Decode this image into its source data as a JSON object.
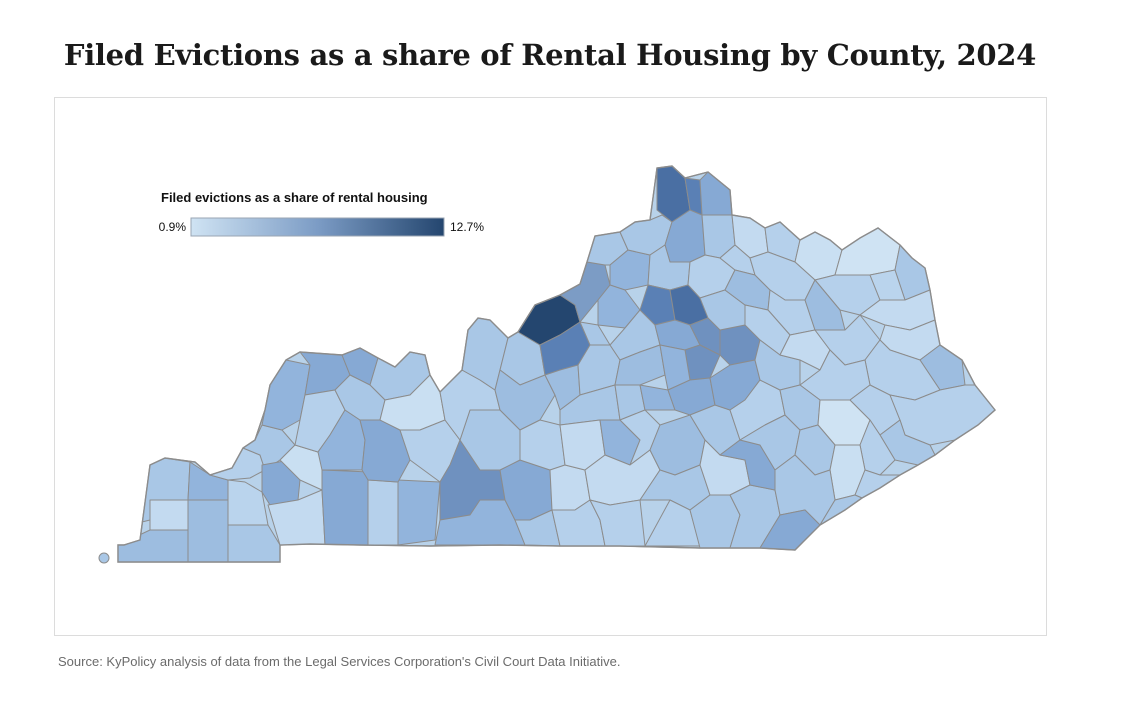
{
  "title": "Filed Evictions as a share of Rental Housing by County, 2024",
  "legend": {
    "title": "Filed evictions as a share of rental housing",
    "min_label": "0.9%",
    "max_label": "12.7%",
    "min_value": 0.9,
    "max_value": 12.7,
    "color_low": "#cfe3f3",
    "color_high": "#24466f"
  },
  "map": {
    "region": "Kentucky",
    "border_color": "#8c8c8c"
  },
  "source": "Source: KyPolicy analysis of data from the Legal Services Corporation's Civil Court Data Initiative."
}
